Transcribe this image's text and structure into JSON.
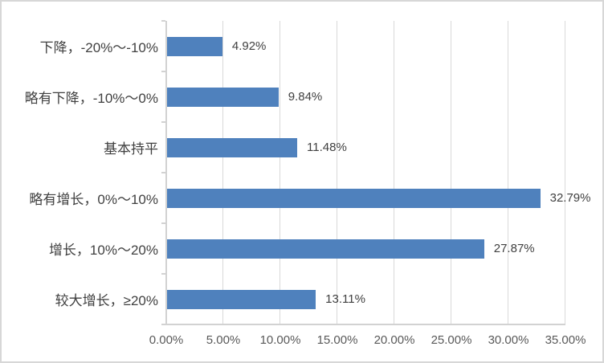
{
  "chart_data": {
    "type": "bar",
    "orientation": "horizontal",
    "title": "",
    "xlabel": "",
    "ylabel": "",
    "categories": [
      "下降，-20%～-10%",
      "略有下降，-10%～0%",
      "基本持平",
      "略有增长，0%～10%",
      "增长，10%～20%",
      "较大增长，≥20%"
    ],
    "values": [
      4.92,
      9.84,
      11.48,
      32.79,
      27.87,
      13.11
    ],
    "data_labels": [
      "4.92%",
      "9.84%",
      "11.48%",
      "32.79%",
      "27.87%",
      "13.11%"
    ],
    "x_tick_labels": [
      "0.00%",
      "5.00%",
      "10.00%",
      "15.00%",
      "20.00%",
      "25.00%",
      "30.00%",
      "35.00%"
    ],
    "xlim": [
      0,
      35
    ],
    "x_tick_step": 5,
    "grid": true,
    "legend_position": "none",
    "colors": {
      "bar": "#4f81bd",
      "gridline": "#d9d9d9",
      "axis": "#d2d2d2",
      "data_label_text": "#404040",
      "category_label_text": "#3f3f3f",
      "tick_label_text": "#595959",
      "frame_border": "#d7d7d7",
      "background": "#ffffff"
    }
  }
}
